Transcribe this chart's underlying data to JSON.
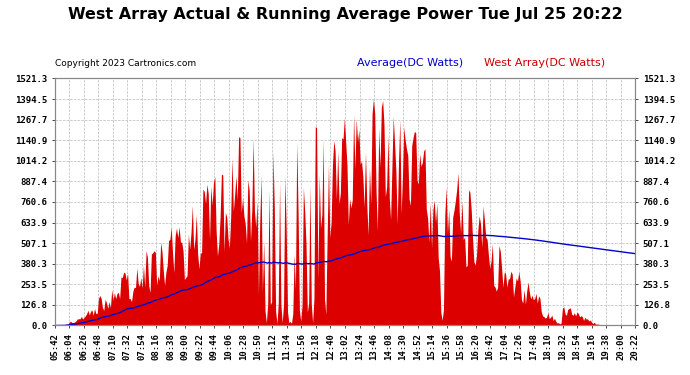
{
  "title": "West Array Actual & Running Average Power Tue Jul 25 20:22",
  "copyright": "Copyright 2023 Cartronics.com",
  "legend_avg": "Average(DC Watts)",
  "legend_west": "West Array(DC Watts)",
  "yticks": [
    0.0,
    126.8,
    253.5,
    380.3,
    507.1,
    633.9,
    760.6,
    887.4,
    1014.2,
    1140.9,
    1267.7,
    1394.5,
    1521.3
  ],
  "ymax": 1521.3,
  "ymin": 0.0,
  "background_color": "#ffffff",
  "plot_bg_color": "#ffffff",
  "grid_color": "#bbbbbb",
  "bar_color": "#dd0000",
  "avg_line_color": "#0000cc",
  "title_color": "#000000",
  "copyright_color": "#000000",
  "legend_avg_color": "#0000cc",
  "legend_west_color": "#cc0000",
  "title_fontsize": 11.5,
  "tick_fontsize": 6.5,
  "copyright_fontsize": 6.5,
  "legend_fontsize": 8,
  "xtick_labels": [
    "05:42",
    "06:04",
    "06:26",
    "06:48",
    "07:10",
    "07:32",
    "07:54",
    "08:16",
    "08:38",
    "09:00",
    "09:22",
    "09:44",
    "10:06",
    "10:28",
    "10:50",
    "11:12",
    "11:34",
    "11:56",
    "12:18",
    "12:40",
    "13:02",
    "13:24",
    "13:46",
    "14:08",
    "14:30",
    "14:52",
    "15:14",
    "15:36",
    "15:58",
    "16:20",
    "16:42",
    "17:04",
    "17:26",
    "17:48",
    "18:10",
    "18:32",
    "18:54",
    "19:16",
    "19:38",
    "20:00",
    "20:22"
  ]
}
